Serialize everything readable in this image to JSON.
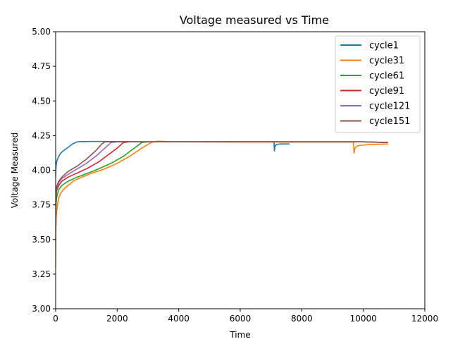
{
  "chart_data": {
    "type": "line",
    "title": "Voltage measured vs Time",
    "xlabel": "Time",
    "ylabel": "Voltage Measured",
    "xlim": [
      0,
      12000
    ],
    "ylim": [
      3.0,
      5.0
    ],
    "xticks": [
      0,
      2000,
      4000,
      6000,
      8000,
      10000,
      12000
    ],
    "xtick_labels": [
      "0",
      "2000",
      "4000",
      "6000",
      "8000",
      "10000",
      "12000"
    ],
    "yticks": [
      3.0,
      3.25,
      3.5,
      3.75,
      4.0,
      4.25,
      4.5,
      4.75,
      5.0
    ],
    "ytick_labels": [
      "3.00",
      "3.25",
      "3.50",
      "3.75",
      "4.00",
      "4.25",
      "4.50",
      "4.75",
      "5.00"
    ],
    "grid": false,
    "legend_position": "top-right",
    "series": [
      {
        "name": "cycle1",
        "color": "#1f77b4",
        "x": [
          0,
          10,
          30,
          60,
          100,
          150,
          250,
          400,
          550,
          700,
          900,
          1200,
          1500,
          2000,
          3000,
          4000,
          5000,
          6000,
          7000,
          7100,
          7110,
          7130,
          7160,
          7200,
          7300,
          7400,
          7600
        ],
        "y": [
          3.95,
          4.02,
          4.06,
          4.08,
          4.1,
          4.12,
          4.14,
          4.165,
          4.19,
          4.205,
          4.207,
          4.208,
          4.208,
          4.207,
          4.205,
          4.205,
          4.205,
          4.205,
          4.205,
          4.205,
          4.14,
          4.17,
          4.183,
          4.187,
          4.19,
          4.19,
          4.19
        ]
      },
      {
        "name": "cycle31",
        "color": "#ff7f0e",
        "x": [
          0,
          5,
          15,
          30,
          60,
          100,
          150,
          250,
          400,
          600,
          900,
          1200,
          1600,
          2000,
          2400,
          2800,
          3100,
          3300,
          3600,
          4000,
          6000,
          8000,
          9600,
          9680,
          9700,
          9730,
          9800,
          9900,
          10200,
          10500,
          10800
        ],
        "y": [
          3.3,
          3.55,
          3.65,
          3.7,
          3.75,
          3.8,
          3.83,
          3.86,
          3.89,
          3.925,
          3.955,
          3.98,
          4.01,
          4.05,
          4.1,
          4.16,
          4.2,
          4.21,
          4.208,
          4.205,
          4.203,
          4.203,
          4.203,
          4.203,
          4.125,
          4.16,
          4.175,
          4.18,
          4.185,
          4.188,
          4.19
        ]
      },
      {
        "name": "cycle61",
        "color": "#2ca02c",
        "x": [
          0,
          5,
          15,
          30,
          60,
          100,
          200,
          400,
          700,
          1000,
          1400,
          1800,
          2200,
          2500,
          2800,
          3000,
          4000,
          6000,
          8000,
          10000,
          10800
        ],
        "y": [
          3.4,
          3.7,
          3.76,
          3.8,
          3.83,
          3.86,
          3.89,
          3.92,
          3.95,
          3.975,
          4.01,
          4.05,
          4.1,
          4.15,
          4.2,
          4.205,
          4.205,
          4.205,
          4.205,
          4.205,
          4.2
        ]
      },
      {
        "name": "cycle91",
        "color": "#d62728",
        "x": [
          0,
          5,
          15,
          30,
          60,
          100,
          200,
          400,
          700,
          1000,
          1400,
          1700,
          2000,
          2200,
          2400,
          3000,
          4000,
          6000,
          8000,
          10000,
          10800
        ],
        "y": [
          3.5,
          3.78,
          3.82,
          3.85,
          3.87,
          3.89,
          3.92,
          3.95,
          3.98,
          4.01,
          4.06,
          4.11,
          4.16,
          4.2,
          4.205,
          4.205,
          4.205,
          4.205,
          4.205,
          4.205,
          4.2
        ]
      },
      {
        "name": "cycle121",
        "color": "#9467bd",
        "x": [
          0,
          5,
          15,
          30,
          60,
          100,
          200,
          400,
          700,
          1000,
          1300,
          1600,
          1800,
          2000,
          2500,
          4000,
          6000,
          8000,
          10000,
          10800
        ],
        "y": [
          3.55,
          3.8,
          3.84,
          3.87,
          3.89,
          3.91,
          3.94,
          3.97,
          4.01,
          4.05,
          4.1,
          4.16,
          4.2,
          4.205,
          4.205,
          4.205,
          4.205,
          4.205,
          4.205,
          4.2
        ]
      },
      {
        "name": "cycle151",
        "color": "#8c564b",
        "x": [
          0,
          5,
          15,
          30,
          60,
          100,
          200,
          400,
          700,
          1000,
          1300,
          1500,
          1600,
          2000,
          4000,
          6000,
          8000,
          10000,
          10800
        ],
        "y": [
          3.6,
          3.82,
          3.86,
          3.88,
          3.9,
          3.92,
          3.95,
          3.99,
          4.03,
          4.08,
          4.14,
          4.19,
          4.205,
          4.205,
          4.205,
          4.205,
          4.205,
          4.205,
          4.2
        ]
      }
    ]
  }
}
